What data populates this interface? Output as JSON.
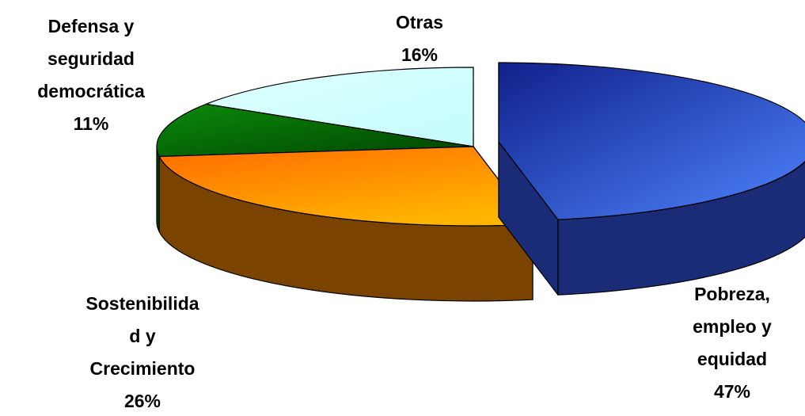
{
  "chart_data": {
    "type": "pie3d",
    "categories": [
      [
        "Pobreza,",
        "empleo y",
        "equidad"
      ],
      [
        "Sostenibilida",
        "d y",
        "Crecimiento"
      ],
      [
        "Defensa y",
        "seguridad",
        "democrática"
      ],
      [
        "Otras"
      ]
    ],
    "values": [
      47,
      26,
      11,
      16
    ],
    "value_labels": [
      "47%",
      "26%",
      "11%",
      "16%"
    ],
    "colors": [
      "#2f55e0",
      "#ff8a00",
      "#0a700a",
      "#ccffff"
    ]
  }
}
